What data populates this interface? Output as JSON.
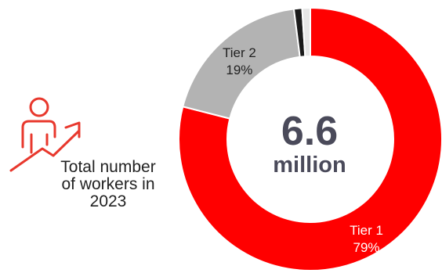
{
  "caption": {
    "line1": "Total number",
    "line2": "of workers in",
    "line3": "2023"
  },
  "icon": {
    "name": "person-rising-arrow-icon",
    "color": "#e8382d"
  },
  "chart_data": {
    "type": "pie",
    "center_value": "6.6",
    "center_unit": "million",
    "slices": [
      {
        "label": "Tier 1",
        "value_label": "79%",
        "value": 79,
        "color": "#ff0000"
      },
      {
        "label": "Tier 2",
        "value_label": "19%",
        "value": 19,
        "color": "#b3b3b3"
      },
      {
        "label": "",
        "value_label": "",
        "value": 1,
        "color": "#1a1a1a"
      },
      {
        "label": "",
        "value_label": "",
        "value": 1,
        "color": "#e6e6e6"
      }
    ]
  }
}
